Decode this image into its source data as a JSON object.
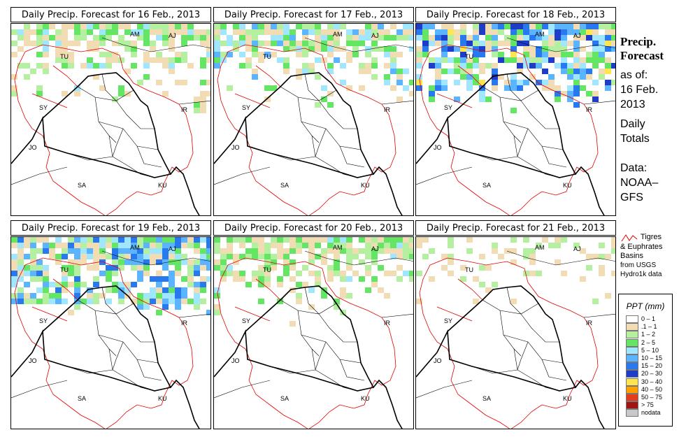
{
  "panels": [
    {
      "title": "Daily Precip. Forecast for  16 Feb., 2013",
      "intensity": 1.0,
      "band": "north",
      "east_strip": true
    },
    {
      "title": "Daily Precip. Forecast for  17 Feb., 2013",
      "intensity": 1.2,
      "band": "north",
      "east_strip": false
    },
    {
      "title": "Daily Precip. Forecast for  18 Feb., 2013",
      "intensity": 1.8,
      "band": "north-wide",
      "east_strip": false
    },
    {
      "title": "Daily Precip. Forecast for  19 Feb., 2013",
      "intensity": 1.6,
      "band": "north-wide",
      "east_strip": false
    },
    {
      "title": "Daily Precip. Forecast for  20 Feb., 2013",
      "intensity": 0.9,
      "band": "north",
      "east_strip": false
    },
    {
      "title": "Daily Precip. Forecast for  21 Feb., 2013",
      "intensity": 0.6,
      "band": "north-sparse",
      "east_strip": false
    }
  ],
  "map_labels": [
    "AM",
    "AJ",
    "TU",
    "SY",
    "IR",
    "JO",
    "SA",
    "KU"
  ],
  "side": {
    "title_line1": "Precip.",
    "title_line2": "Forecast",
    "asof_label": "as of:",
    "asof_date1": "16 Feb.",
    "asof_date2": "2013",
    "totals1": "Daily",
    "totals2": "Totals",
    "data1": "Data:",
    "data2": "NOAA–",
    "data3": "GFS"
  },
  "basin_legend": {
    "line1": "Tigres",
    "line2": "& Euphrates",
    "line3": "Basins",
    "line4": "from USGS",
    "line5": "Hydro1k data",
    "color": "#e00000"
  },
  "ppt_legend": {
    "title": "PPT (mm)",
    "classes": [
      {
        "label": "0 – 1",
        "color": "#ffffff"
      },
      {
        "label": ".1 – 1",
        "color": "#f2dcb4"
      },
      {
        "label": "1 – 2",
        "color": "#b4f0a0"
      },
      {
        "label": "2 – 5",
        "color": "#64e664"
      },
      {
        "label": "5 – 10",
        "color": "#a0e6ff"
      },
      {
        "label": "10 – 15",
        "color": "#5ab4ff"
      },
      {
        "label": "15 – 20",
        "color": "#2878f0"
      },
      {
        "label": "20 – 30",
        "color": "#1e3cc8"
      },
      {
        "label": "30 – 40",
        "color": "#ffe650"
      },
      {
        "label": "40 – 50",
        "color": "#ffa000"
      },
      {
        "label": "50 – 75",
        "color": "#e63c1e"
      },
      {
        "label": "> 75",
        "color": "#a01414"
      },
      {
        "label": "nodata",
        "color": "#c8c8c8"
      }
    ]
  }
}
